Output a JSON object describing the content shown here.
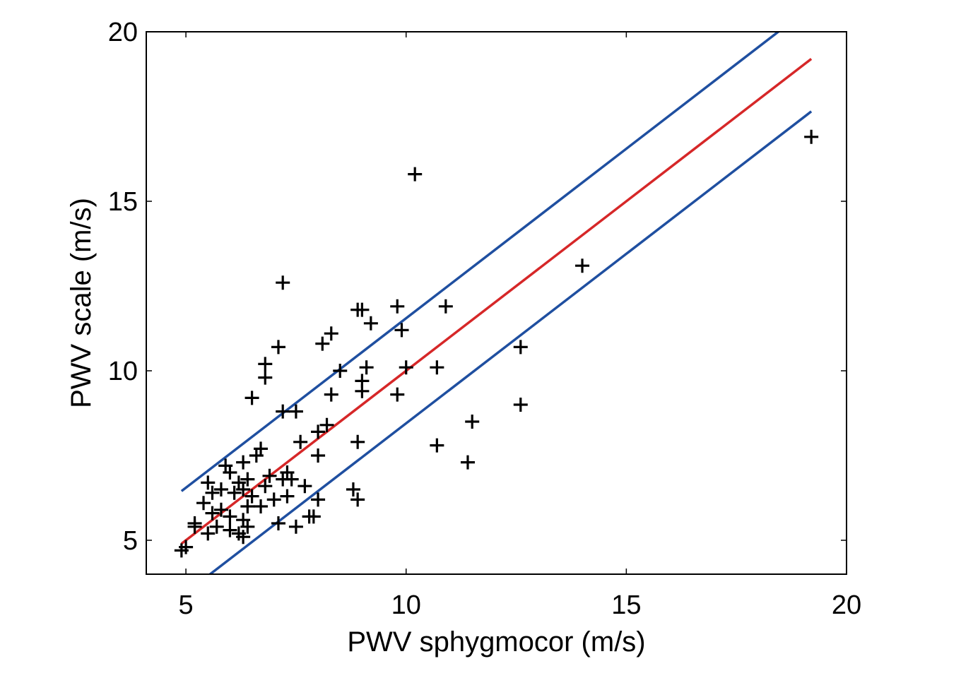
{
  "chart_data": {
    "type": "scatter",
    "title": "",
    "xlabel": "PWV sphygmocor (m/s)",
    "ylabel": "PWV scale (m/s)",
    "xlim": [
      4.1,
      20
    ],
    "ylim": [
      4.0,
      20
    ],
    "xticks": [
      5,
      10,
      15,
      20
    ],
    "yticks": [
      5,
      10,
      15,
      20
    ],
    "xtick_labels": [
      "5",
      "10",
      "15",
      "20"
    ],
    "ytick_labels": [
      "5",
      "10",
      "15",
      "20"
    ],
    "grid": false,
    "marker": "+",
    "colors": {
      "points": "#000000",
      "identity_line": "#d62728",
      "limit_lines": "#1f4fa0",
      "axes": "#000000"
    },
    "series": [
      {
        "kind": "points",
        "points": [
          [
            10.2,
            15.8
          ],
          [
            7.2,
            12.6
          ],
          [
            9.0,
            11.8
          ],
          [
            8.9,
            11.8
          ],
          [
            9.8,
            11.9
          ],
          [
            10.9,
            11.9
          ],
          [
            9.2,
            11.4
          ],
          [
            9.9,
            11.2
          ],
          [
            8.3,
            11.1
          ],
          [
            8.1,
            10.8
          ],
          [
            7.1,
            10.7
          ],
          [
            12.6,
            10.7
          ],
          [
            14.0,
            13.1
          ],
          [
            19.2,
            16.9
          ],
          [
            6.8,
            10.2
          ],
          [
            9.1,
            10.1
          ],
          [
            10.0,
            10.1
          ],
          [
            10.7,
            10.1
          ],
          [
            8.5,
            10.0
          ],
          [
            6.8,
            9.8
          ],
          [
            9.0,
            9.7
          ],
          [
            9.0,
            9.4
          ],
          [
            8.3,
            9.3
          ],
          [
            9.8,
            9.3
          ],
          [
            6.5,
            9.2
          ],
          [
            12.6,
            9.0
          ],
          [
            7.2,
            8.8
          ],
          [
            7.5,
            8.8
          ],
          [
            11.5,
            8.5
          ],
          [
            8.2,
            8.4
          ],
          [
            8.0,
            8.2
          ],
          [
            8.9,
            7.9
          ],
          [
            7.6,
            7.9
          ],
          [
            10.7,
            7.8
          ],
          [
            6.7,
            7.7
          ],
          [
            8.0,
            7.5
          ],
          [
            6.6,
            7.5
          ],
          [
            11.4,
            7.3
          ],
          [
            6.3,
            7.3
          ],
          [
            5.9,
            7.2
          ],
          [
            6.0,
            7.0
          ],
          [
            7.3,
            7.0
          ],
          [
            7.4,
            6.8
          ],
          [
            6.9,
            6.9
          ],
          [
            7.2,
            6.8
          ],
          [
            6.4,
            6.8
          ],
          [
            6.2,
            6.7
          ],
          [
            5.5,
            6.7
          ],
          [
            7.7,
            6.6
          ],
          [
            6.8,
            6.6
          ],
          [
            6.3,
            6.5
          ],
          [
            5.8,
            6.5
          ],
          [
            6.1,
            6.4
          ],
          [
            5.6,
            6.4
          ],
          [
            8.8,
            6.5
          ],
          [
            6.5,
            6.3
          ],
          [
            7.0,
            6.2
          ],
          [
            7.3,
            6.3
          ],
          [
            8.0,
            6.2
          ],
          [
            8.9,
            6.2
          ],
          [
            6.7,
            6.0
          ],
          [
            5.4,
            6.1
          ],
          [
            5.8,
            5.9
          ],
          [
            6.4,
            6.0
          ],
          [
            6.0,
            5.7
          ],
          [
            5.6,
            5.8
          ],
          [
            6.3,
            5.6
          ],
          [
            7.8,
            5.7
          ],
          [
            7.9,
            5.7
          ],
          [
            5.2,
            5.5
          ],
          [
            5.7,
            5.4
          ],
          [
            6.0,
            5.3
          ],
          [
            6.4,
            5.4
          ],
          [
            7.1,
            5.5
          ],
          [
            7.5,
            5.4
          ],
          [
            6.2,
            5.2
          ],
          [
            5.5,
            5.2
          ],
          [
            6.3,
            5.1
          ],
          [
            5.2,
            5.4
          ],
          [
            5.0,
            4.8
          ],
          [
            4.9,
            4.7
          ]
        ]
      },
      {
        "kind": "line",
        "role": "identity",
        "x": [
          4.9,
          19.2
        ],
        "y": [
          4.9,
          19.2
        ]
      },
      {
        "kind": "line",
        "role": "upper",
        "x": [
          4.9,
          18.5
        ],
        "y": [
          6.45,
          20.05
        ]
      },
      {
        "kind": "line",
        "role": "lower",
        "x": [
          5.5,
          19.2
        ],
        "y": [
          3.95,
          17.65
        ]
      }
    ]
  }
}
